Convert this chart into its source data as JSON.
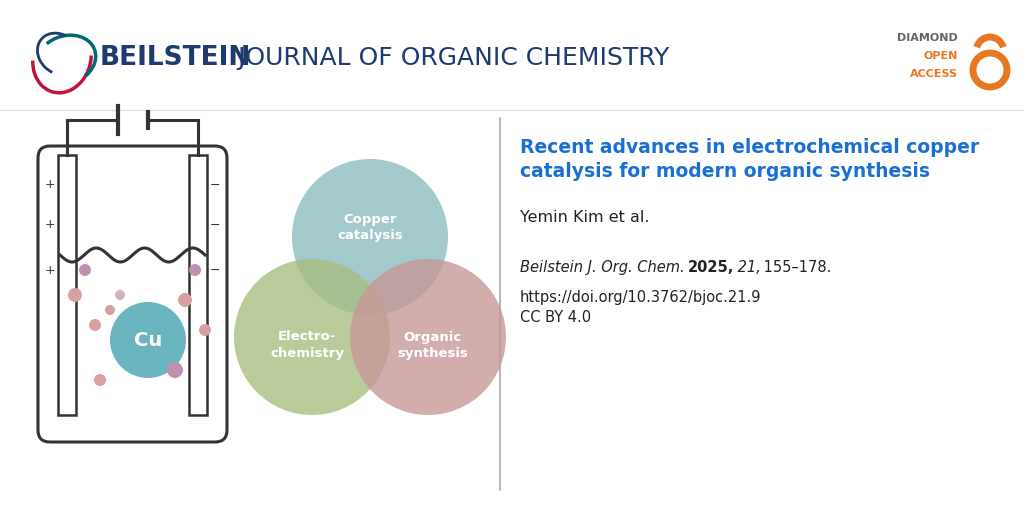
{
  "background_color": "#ffffff",
  "beilstein_bold": "BEILSTEIN",
  "beilstein_rest": " JOURNAL OF ORGANIC CHEMISTRY",
  "beilstein_color": "#1e3a6e",
  "diamond_color_text": "#555555",
  "diamond_color_open": "#e87722",
  "title_text": "Recent advances in electrochemical copper\ncatalysis for modern organic synthesis",
  "author_text": "Yemin Kim et al.",
  "journal_italic": "Beilstein J. Org. Chem.",
  "journal_year_bold": "2025,",
  "journal_vol_italic": " 21,",
  "journal_pages": " 155–178.",
  "doi_text": "https://doi.org/10.3762/bjoc.21.9",
  "license_text": "CC BY 4.0",
  "title_color": "#1a6fd4",
  "text_color": "#222222",
  "circle_copper_color": "#8bbcbe",
  "circle_electro_color": "#a8be80",
  "circle_organic_color": "#c89898",
  "logo_crimson": "#c0143c",
  "logo_teal": "#006878",
  "logo_navy": "#1e3a6e"
}
